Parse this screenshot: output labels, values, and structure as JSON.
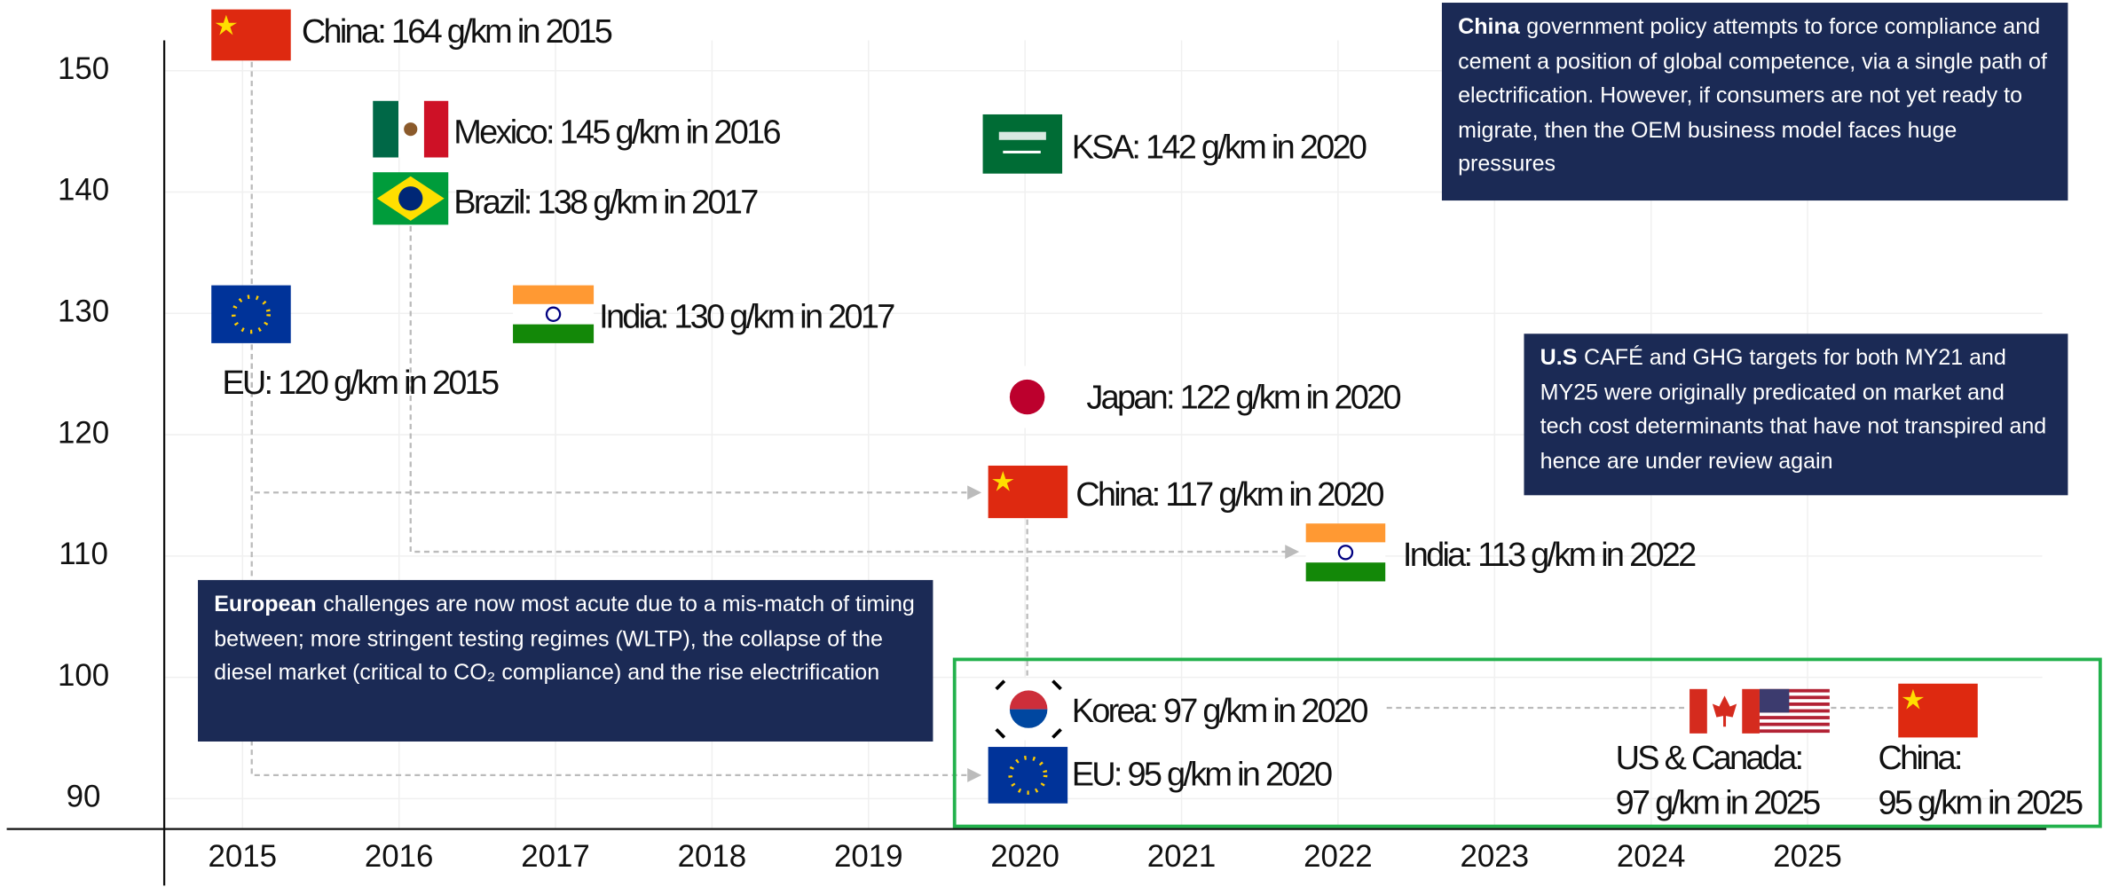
{
  "chart_data": {
    "type": "timeline",
    "xlim": [
      2014.5,
      2026.5
    ],
    "xticks": [
      2015,
      2016,
      2017,
      2018,
      2019,
      2020,
      2021,
      2022,
      2023,
      2024,
      2025
    ],
    "ylim": [
      87.5,
      152.5
    ],
    "yticks": [
      90,
      100,
      110,
      120,
      130,
      140,
      150
    ],
    "grid": true,
    "annotations": [
      "China: 164 g/km in 2015",
      "Mexico: 145 g/km in 2016",
      "Brazil: 138 g/km in 2017",
      "KSA: 142 g/km in 2020",
      "India: 130 g/km in 2017",
      "EU: 120 g/km in 2015",
      "Japan: 122 g/km in 2020",
      "China: 117 g/km in 2020",
      "India: 113 g/km in 2022",
      "Korea: 97 g/km in 2020",
      "EU: 95 g/km in 2020",
      "US & Canada:",
      "97 g/km in 2025",
      "China:",
      "95 g/km in 2025"
    ],
    "notes": [
      {
        "bold": "China",
        "text": "government policy attempts to force compliance and cement a position of global competence, via a single path of electrification. However, if consumers are not yet ready to migrate, then the OEM business model faces huge pressures"
      },
      {
        "bold": "U.S",
        "text": "CAFÉ and GHG targets for both MY21 and MY25 were originally predicated on market and tech cost determinants that have not transpired and hence are under review again"
      },
      {
        "bold": "European",
        "text": "challenges are now most acute due to a mis-match of timing between; more stringent testing regimes (WLTP), the collapse of the diesel market (critical to CO₂ compliance) and the rise electrification"
      }
    ]
  }
}
